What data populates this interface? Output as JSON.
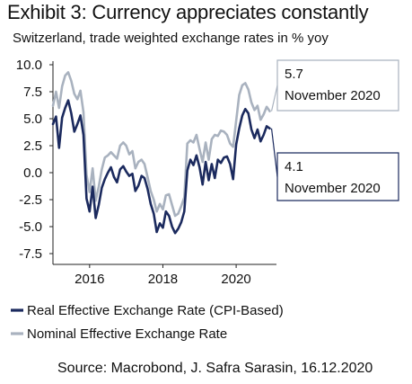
{
  "title": "Exhibit 3: Currency appreciates constantly",
  "subtitle": "Switzerland, trade weighted exchange rates in % yoy",
  "source": "Source: Macrobond,  J. Safra Sarasin, 16.12.2020",
  "chart_data": {
    "type": "line",
    "title": "Exhibit 3: Currency appreciates constantly",
    "subtitle": "Switzerland, trade weighted exchange rates in % yoy",
    "ylim": [
      -8.5,
      11
    ],
    "xlim": [
      2015.0,
      2021.1
    ],
    "yticks": [
      10.0,
      7.5,
      5.0,
      2.5,
      0.0,
      -2.5,
      -5.0,
      -7.5
    ],
    "ytick_labels": [
      "10.0",
      "7.5",
      "5.0",
      "2.5",
      "0.0",
      "-2.5",
      "-5.0",
      "-7.5"
    ],
    "xticks": [
      2016,
      2018,
      2020
    ],
    "xtick_labels": [
      "2016",
      "2018",
      "2020"
    ],
    "grid": false,
    "legend_position": "bottom",
    "series": [
      {
        "name": "Real Effective Exchange Rate (CPI-Based)",
        "color": "#1b2a5e",
        "x": [
          2015.0,
          2015.083,
          2015.167,
          2015.25,
          2015.333,
          2015.417,
          2015.5,
          2015.583,
          2015.667,
          2015.75,
          2015.833,
          2015.917,
          2016.0,
          2016.083,
          2016.167,
          2016.25,
          2016.333,
          2016.417,
          2016.5,
          2016.583,
          2016.667,
          2016.75,
          2016.833,
          2016.917,
          2017.0,
          2017.083,
          2017.167,
          2017.25,
          2017.333,
          2017.417,
          2017.5,
          2017.583,
          2017.667,
          2017.75,
          2017.833,
          2017.917,
          2018.0,
          2018.083,
          2018.167,
          2018.25,
          2018.333,
          2018.417,
          2018.5,
          2018.583,
          2018.667,
          2018.75,
          2018.833,
          2018.917,
          2019.0,
          2019.083,
          2019.167,
          2019.25,
          2019.333,
          2019.417,
          2019.5,
          2019.583,
          2019.667,
          2019.75,
          2019.833,
          2019.917,
          2020.0,
          2020.083,
          2020.167,
          2020.25,
          2020.333,
          2020.417,
          2020.5,
          2020.583,
          2020.667,
          2020.75,
          2020.833,
          2020.917
        ],
        "y": [
          4.5,
          5.2,
          2.3,
          5.1,
          6.0,
          6.7,
          5.5,
          3.8,
          4.5,
          5.3,
          3.5,
          -2.4,
          -3.6,
          -1.3,
          -4.2,
          -3.0,
          -1.4,
          -0.6,
          0.0,
          0.5,
          -0.4,
          -0.9,
          0.3,
          0.6,
          0.1,
          -0.3,
          -0.1,
          -1.7,
          -1.2,
          -0.3,
          -0.5,
          -1.5,
          -2.9,
          -3.8,
          -5.5,
          -4.7,
          -5.1,
          -3.6,
          -4.0,
          -5.0,
          -5.6,
          -5.2,
          -4.6,
          -3.6,
          0.2,
          1.2,
          0.7,
          1.6,
          0.5,
          -1.1,
          1.0,
          -0.7,
          0.8,
          -0.5,
          1.2,
          0.9,
          1.4,
          1.5,
          0.8,
          -0.6,
          2.6,
          4.1,
          5.3,
          5.9,
          5.5,
          4.0,
          3.2,
          4.0,
          2.9,
          3.5,
          4.3,
          4.1
        ]
      },
      {
        "name": "Nominal Effective Exchange Rate",
        "color": "#a9b2bf",
        "x": [
          2015.0,
          2015.083,
          2015.167,
          2015.25,
          2015.333,
          2015.417,
          2015.5,
          2015.583,
          2015.667,
          2015.75,
          2015.833,
          2015.917,
          2016.0,
          2016.083,
          2016.167,
          2016.25,
          2016.333,
          2016.417,
          2016.5,
          2016.583,
          2016.667,
          2016.75,
          2016.833,
          2016.917,
          2017.0,
          2017.083,
          2017.167,
          2017.25,
          2017.333,
          2017.417,
          2017.5,
          2017.583,
          2017.667,
          2017.75,
          2017.833,
          2017.917,
          2018.0,
          2018.083,
          2018.167,
          2018.25,
          2018.333,
          2018.417,
          2018.5,
          2018.583,
          2018.667,
          2018.75,
          2018.833,
          2018.917,
          2019.0,
          2019.083,
          2019.167,
          2019.25,
          2019.333,
          2019.417,
          2019.5,
          2019.583,
          2019.667,
          2019.75,
          2019.833,
          2019.917,
          2020.0,
          2020.083,
          2020.167,
          2020.25,
          2020.333,
          2020.417,
          2020.5,
          2020.583,
          2020.667,
          2020.75,
          2020.833,
          2020.917
        ],
        "y": [
          6.2,
          7.5,
          6.0,
          8.0,
          9.0,
          9.3,
          8.5,
          7.3,
          6.8,
          7.6,
          5.6,
          -0.2,
          -1.8,
          0.4,
          -2.6,
          -1.3,
          0.3,
          1.4,
          1.6,
          1.9,
          1.6,
          1.3,
          2.5,
          2.8,
          2.5,
          1.7,
          2.0,
          0.4,
          1.0,
          1.2,
          0.8,
          -0.4,
          -1.7,
          -2.5,
          -3.6,
          -2.9,
          -3.4,
          -2.1,
          -2.0,
          -3.0,
          -4.0,
          -3.8,
          -3.1,
          -2.3,
          2.7,
          3.0,
          2.8,
          3.5,
          2.2,
          1.0,
          2.8,
          1.2,
          3.1,
          3.5,
          3.4,
          3.9,
          3.8,
          3.5,
          2.7,
          2.4,
          4.8,
          7.2,
          8.1,
          8.3,
          7.7,
          6.5,
          5.8,
          6.2,
          4.9,
          5.4,
          6.1,
          5.7
        ]
      }
    ],
    "annotations": [
      {
        "series": "Nominal Effective Exchange Rate",
        "value": "5.7",
        "date": "November 2020"
      },
      {
        "series": "Real Effective Exchange Rate (CPI-Based)",
        "value": "4.1",
        "date": "November 2020"
      }
    ]
  }
}
